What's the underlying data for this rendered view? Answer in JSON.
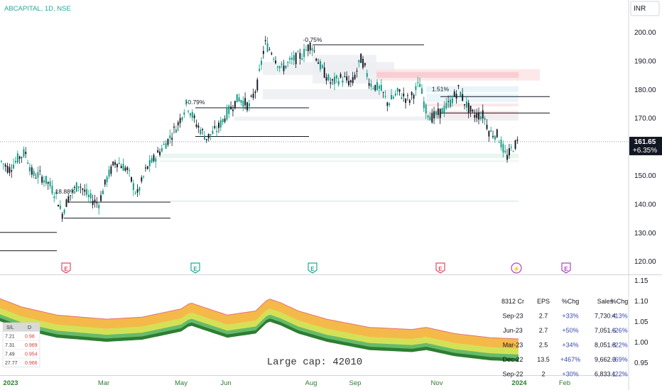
{
  "header": {
    "title": "ABCAPITAL, 1D, NSE",
    "currency": "INR"
  },
  "price_axis": {
    "ticks": [
      120,
      130,
      140,
      150,
      160,
      170,
      180,
      190,
      200
    ]
  },
  "last_price": {
    "value": "161.65",
    "change": "+6.35%",
    "bg_color": "#131722"
  },
  "colors": {
    "up": "#089981",
    "down": "#131722",
    "title": "#26a69a",
    "axis_text": "#131722",
    "event_red": "#e04f5f",
    "event_green": "#22ab94",
    "event_purple": "#ab47bc"
  },
  "chart_data": {
    "type": "candlestick",
    "x_axis": {
      "labels": [
        "2023",
        "Mar",
        "May",
        "Jun",
        "Aug",
        "Sep",
        "Nov",
        "2024",
        "Feb"
      ]
    },
    "y_range": [
      116,
      205
    ],
    "annotations": [
      {
        "text": "-0.75%",
        "price": 196.5
      },
      {
        "text": "-0.79%",
        "price": 174.8
      },
      {
        "text": "1.51%",
        "price": 179.3
      },
      {
        "text": "18.88%",
        "price": 143.6
      }
    ],
    "level_lines": [
      {
        "x0": 0,
        "x1": 80,
        "price": 130
      },
      {
        "x0": 0,
        "x1": 80,
        "price": 123.6
      },
      {
        "x0": 90,
        "x1": 240,
        "price": 135
      },
      {
        "x0": 95,
        "x1": 240,
        "price": 140.6
      },
      {
        "x0": 275,
        "x1": 435,
        "price": 173.5
      },
      {
        "x0": 275,
        "x1": 435,
        "price": 163.5
      },
      {
        "x0": 440,
        "x1": 597,
        "price": 195.5
      },
      {
        "x0": 620,
        "x1": 774,
        "price": 177.4
      },
      {
        "x0": 620,
        "x1": 774,
        "price": 171.7
      }
    ],
    "events": [
      {
        "letter": "E",
        "x": 93,
        "color": "red"
      },
      {
        "letter": "E",
        "x": 275,
        "color": "green"
      },
      {
        "letter": "E",
        "x": 440,
        "color": "green"
      },
      {
        "letter": "E",
        "x": 620,
        "color": "red"
      },
      {
        "letter": "⚡",
        "x": 727,
        "color": "purple"
      },
      {
        "letter": "E",
        "x": 797,
        "color": "purple"
      }
    ],
    "lower_pane": {
      "axis_ticks": [
        0.95,
        1.0,
        1.05,
        1.1,
        1.15
      ],
      "watermark": "Large cap: 42010",
      "sl_table": {
        "headers": [
          "S/L",
          "D"
        ],
        "rows": [
          [
            "7.21",
            "0.98"
          ],
          [
            "7.31",
            "0.969"
          ],
          [
            "7.49",
            "0.954"
          ],
          [
            "27.77",
            "0.966"
          ]
        ]
      },
      "eps_table": {
        "headers": [
          "8312 Cr",
          "EPS",
          "%Chg",
          "Sales",
          "%Chg"
        ],
        "rows": [
          [
            "Sep-23",
            "2.7",
            "+33%",
            "7,730.4",
            "+13%"
          ],
          [
            "Jun-23",
            "2.7",
            "+50%",
            "7,051.6",
            "+26%"
          ],
          [
            "Mar-23",
            "2.5",
            "+34%",
            "8,051.8",
            "+22%"
          ],
          [
            "Dec-22",
            "13.5",
            "+467%",
            "9,662.3",
            "+69%"
          ],
          [
            "Sep-22",
            "2",
            "+30%",
            "6,833.1",
            "+22%"
          ]
        ]
      }
    }
  }
}
